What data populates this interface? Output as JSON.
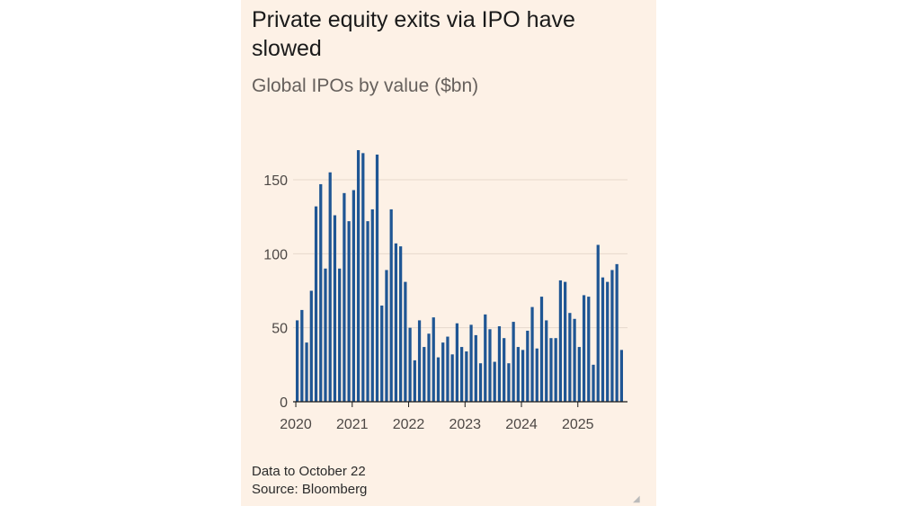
{
  "header": {
    "title": "Private equity exits via IPO have slowed",
    "subtitle": "Global IPOs by value ($bn)"
  },
  "footer": {
    "note": "Data to October 22",
    "source": "Source: Bloomberg"
  },
  "colors": {
    "background": "#fdf1e6",
    "bar": "#1f5694",
    "grid": "#e6d9cc",
    "axis": "#1a1a1a"
  },
  "chart_data": {
    "type": "bar",
    "title": "Private equity exits via IPO have slowed",
    "subtitle": "Global IPOs by value ($bn)",
    "xlabel": "",
    "ylabel": "",
    "ylim": [
      0,
      175
    ],
    "yticks": [
      0,
      50,
      100,
      150
    ],
    "xtick_labels": [
      "2020",
      "2021",
      "2022",
      "2023",
      "2024",
      "2025"
    ],
    "grid": true,
    "legend": "none",
    "series": [
      {
        "name": "Global IPOs by value ($bn), monthly",
        "categories": [
          "2020-01",
          "2020-02",
          "2020-03",
          "2020-04",
          "2020-05",
          "2020-06",
          "2020-07",
          "2020-08",
          "2020-09",
          "2020-10",
          "2020-11",
          "2020-12",
          "2021-01",
          "2021-02",
          "2021-03",
          "2021-04",
          "2021-05",
          "2021-06",
          "2021-07",
          "2021-08",
          "2021-09",
          "2021-10",
          "2021-11",
          "2021-12",
          "2022-01",
          "2022-02",
          "2022-03",
          "2022-04",
          "2022-05",
          "2022-06",
          "2022-07",
          "2022-08",
          "2022-09",
          "2022-10",
          "2022-11",
          "2022-12",
          "2023-01",
          "2023-02",
          "2023-03",
          "2023-04",
          "2023-05",
          "2023-06",
          "2023-07",
          "2023-08",
          "2023-09",
          "2023-10",
          "2023-11",
          "2023-12",
          "2024-01",
          "2024-02",
          "2024-03",
          "2024-04",
          "2024-05",
          "2024-06",
          "2024-07",
          "2024-08",
          "2024-09",
          "2024-10",
          "2024-11",
          "2024-12",
          "2025-01",
          "2025-02",
          "2025-03",
          "2025-04",
          "2025-05",
          "2025-06",
          "2025-07",
          "2025-08",
          "2025-09",
          "2025-10"
        ],
        "values": [
          55,
          62,
          40,
          75,
          132,
          147,
          90,
          155,
          126,
          90,
          141,
          122,
          143,
          170,
          168,
          122,
          130,
          167,
          65,
          89,
          130,
          107,
          105,
          81,
          50,
          28,
          55,
          37,
          46,
          57,
          30,
          40,
          44,
          32,
          53,
          37,
          34,
          52,
          45,
          26,
          59,
          49,
          27,
          51,
          43,
          26,
          54,
          37,
          35,
          48,
          64,
          36,
          71,
          55,
          43,
          43,
          82,
          81,
          60,
          56,
          37,
          72,
          71,
          25,
          106,
          84,
          81,
          89,
          93,
          35
        ]
      }
    ]
  }
}
